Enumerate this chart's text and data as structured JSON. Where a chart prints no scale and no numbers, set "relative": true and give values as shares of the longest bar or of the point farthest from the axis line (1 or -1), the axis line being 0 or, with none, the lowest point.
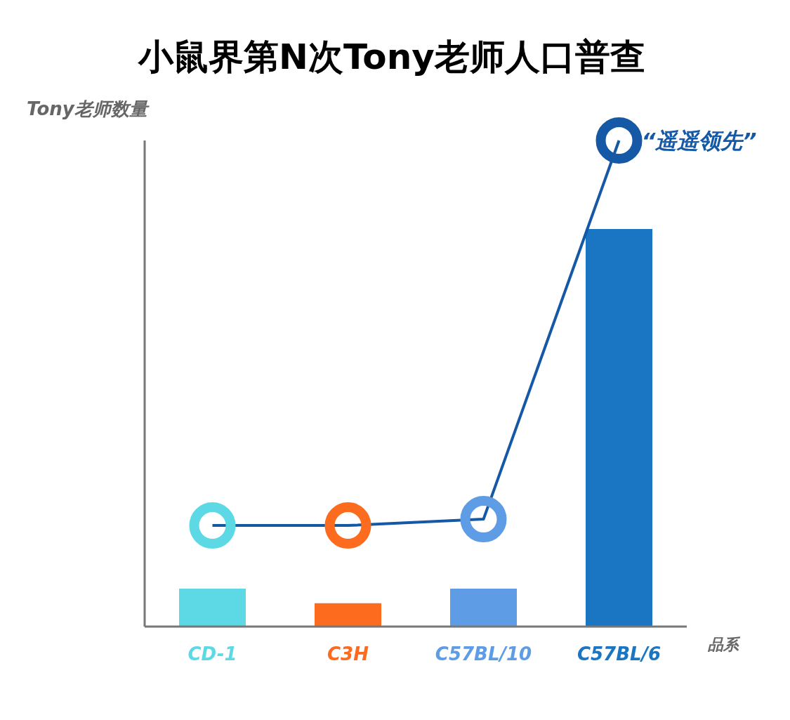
{
  "chart_data": {
    "type": "bar",
    "title": "小鼠界第N次Tony老师人口普查",
    "xlabel": "品系",
    "ylabel": "Tony老师数量",
    "relative": true,
    "legend": false,
    "grid": false,
    "categories": [
      "CD-1",
      "C3H",
      "C57BL/10",
      "C57BL/6"
    ],
    "series": [
      {
        "colors": [
          "#5dd9e6",
          "#fc6b1e",
          "#5e9ce6",
          "#1a75c2"
        ],
        "values": [
          0.078,
          0.048,
          0.078,
          0.818
        ]
      },
      {
        "type": "line",
        "color": "#1558a6",
        "colors": [
          "#5dd9e6",
          "#fc6b1e",
          "#5e9ce6",
          "#1558a6"
        ],
        "values": [
          0.208,
          0.208,
          0.221,
          1
        ]
      }
    ],
    "annotations": [
      {
        "text": "“遥遥领先”",
        "x": "C57BL/6",
        "y": 1
      }
    ]
  }
}
